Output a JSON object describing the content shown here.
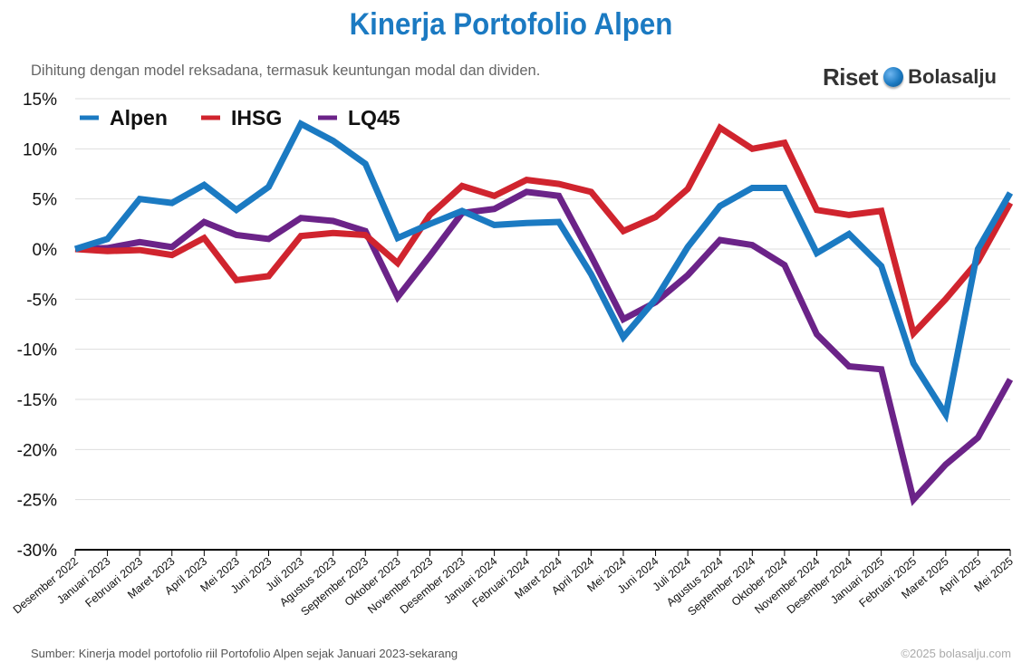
{
  "header": {
    "title": "Kinerja Portofolio Alpen",
    "subtitle": "Dihitung dengan model reksadana, termasuk keuntungan modal dan dividen."
  },
  "brand": {
    "riset": "Riset",
    "bolasalju": "Bolasalju",
    "icon": "snowball-icon"
  },
  "footer": {
    "source": "Sumber: Kinerja model portofolio riil Portofolio Alpen sejak Januari 2023-sekarang",
    "copyright": "©2025 bolasalju.com"
  },
  "colors": {
    "title": "#1b7ac2",
    "alpen": "#1b7ac2",
    "ihsg": "#d0242e",
    "lq45": "#6b2388"
  },
  "chart_data": {
    "type": "line",
    "title": "Kinerja Portofolio Alpen",
    "xlabel": "",
    "ylabel": "",
    "ylim": [
      -30,
      15
    ],
    "yticks": [
      15,
      10,
      5,
      0,
      -5,
      -10,
      -15,
      -20,
      -25,
      -30
    ],
    "ytick_labels": [
      "15%",
      "10%",
      "5%",
      "0%",
      "-5%",
      "-10%",
      "-15%",
      "-20%",
      "-25%",
      "-30%"
    ],
    "grid": true,
    "legend_position": "top-left",
    "categories": [
      "Desember 2022",
      "Januari 2023",
      "Februari 2023",
      "Maret 2023",
      "April 2023",
      "Mei 2023",
      "Juni 2023",
      "Juli 2023",
      "Agustus 2023",
      "September 2023",
      "Oktober 2023",
      "November 2023",
      "Desember 2023",
      "Januari 2024",
      "Februari 2024",
      "Maret 2024",
      "April 2024",
      "Mei 2024",
      "Juni 2024",
      "Juli 2024",
      "Agustus 2024",
      "September 2024",
      "Oktober 2024",
      "November 2024",
      "Desember 2024",
      "Januari 2025",
      "Februari 2025",
      "Maret 2025",
      "April 2025",
      "Mei 2025"
    ],
    "series": [
      {
        "name": "Alpen",
        "color": "#1b7ac2",
        "values": [
          0,
          1.0,
          5.0,
          4.6,
          6.4,
          3.9,
          6.2,
          12.5,
          10.8,
          8.5,
          1.1,
          2.5,
          3.8,
          2.4,
          2.6,
          2.7,
          -2.5,
          -8.8,
          -5.0,
          0.2,
          4.3,
          6.1,
          6.1,
          -0.4,
          1.5,
          -1.7,
          -11.4,
          -16.5,
          0.0,
          5.6
        ]
      },
      {
        "name": "IHSG",
        "color": "#d0242e",
        "values": [
          0,
          -0.2,
          -0.1,
          -0.6,
          1.1,
          -3.1,
          -2.7,
          1.3,
          1.6,
          1.4,
          -1.4,
          3.4,
          6.3,
          5.3,
          6.9,
          6.5,
          5.7,
          1.8,
          3.2,
          6.0,
          12.1,
          10.0,
          10.6,
          3.9,
          3.4,
          3.8,
          -8.4,
          -5.0,
          -1.2,
          4.6
        ]
      },
      {
        "name": "LQ45",
        "color": "#6b2388",
        "values": [
          0,
          0.1,
          0.7,
          0.2,
          2.7,
          1.4,
          1.0,
          3.1,
          2.8,
          1.8,
          -4.8,
          -0.7,
          3.6,
          4.0,
          5.7,
          5.3,
          -0.7,
          -7.0,
          -5.3,
          -2.6,
          0.9,
          0.4,
          -1.6,
          -8.5,
          -11.7,
          -12.0,
          -25.0,
          -21.5,
          -18.8,
          -13.0
        ]
      }
    ]
  }
}
